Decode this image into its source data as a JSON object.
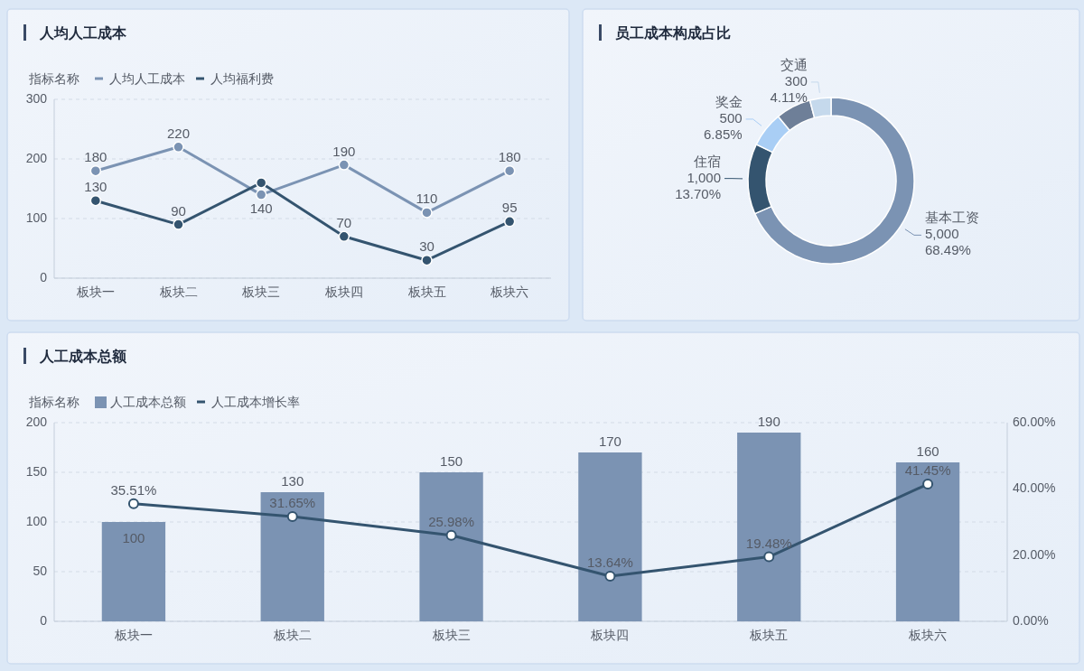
{
  "chart_data": [
    {
      "type": "line",
      "title": "人均人工成本",
      "legend_title": "指标名称",
      "legend": "top left",
      "grid": "y",
      "marker": "circle",
      "categories": [
        "板块一",
        "板块二",
        "板块三",
        "板块四",
        "板块五",
        "板块六"
      ],
      "ylim": [
        0,
        300
      ],
      "yticks": [
        0,
        100,
        200,
        300
      ],
      "series": [
        {
          "name": "人均人工成本",
          "color": "#7b93b3",
          "values": [
            180,
            220,
            140,
            190,
            110,
            180
          ],
          "value_labels": [
            "180",
            "220",
            "140",
            "190",
            "110",
            "180"
          ]
        },
        {
          "name": "人均福利费",
          "color": "#34546f",
          "values": [
            130,
            90,
            160,
            70,
            30,
            95
          ],
          "value_labels": [
            "130",
            "90",
            null,
            "70",
            "30",
            "95"
          ]
        }
      ]
    },
    {
      "type": "donut",
      "title": "员工成本构成占比",
      "categories": [
        "基本工资",
        "住宿",
        "奖金",
        null,
        "交通"
      ],
      "values": [
        5000,
        1000,
        500,
        500,
        300
      ],
      "colors": [
        "#7b93b3",
        "#34546f",
        "#a9cef5",
        "#6e7f98",
        "#c5d9ec"
      ],
      "value_labels": [
        "5,000\n68.49%",
        "1,000\n13.70%",
        "500\n6.85%",
        null,
        "300\n4.11%"
      ]
    },
    {
      "type": "bar",
      "title": "人工成本总额",
      "legend_title": "指标名称",
      "legend": "top left",
      "grid": "y",
      "marker": "circle",
      "categories": [
        "板块一",
        "板块二",
        "板块三",
        "板块四",
        "板块五",
        "板块六"
      ],
      "ylim": [
        0,
        200
      ],
      "yticks": [
        0,
        50,
        100,
        150,
        200
      ],
      "y2lim": [
        0,
        60
      ],
      "y2ticks": [
        {
          "value": 0,
          "label": "0.00%"
        },
        {
          "value": 20,
          "label": "20.00%"
        },
        {
          "value": 40,
          "label": "40.00%"
        },
        {
          "value": 60,
          "label": "60.00%"
        }
      ],
      "series": [
        {
          "name": "人工成本总额",
          "type": "bar",
          "color": "#7b93b3",
          "values": [
            100,
            130,
            150,
            170,
            190,
            160
          ],
          "value_labels": [
            "100",
            "130",
            "150",
            "170",
            "190",
            "160"
          ]
        },
        {
          "name": "人工成本增长率",
          "type": "line",
          "axis": "y2",
          "color": "#34546f",
          "values": [
            35.51,
            31.65,
            25.98,
            13.64,
            19.48,
            41.45
          ],
          "value_labels": [
            "35.51%",
            "31.65%",
            "25.98%",
            "13.64%",
            "19.48%",
            "41.45%"
          ]
        }
      ]
    }
  ]
}
